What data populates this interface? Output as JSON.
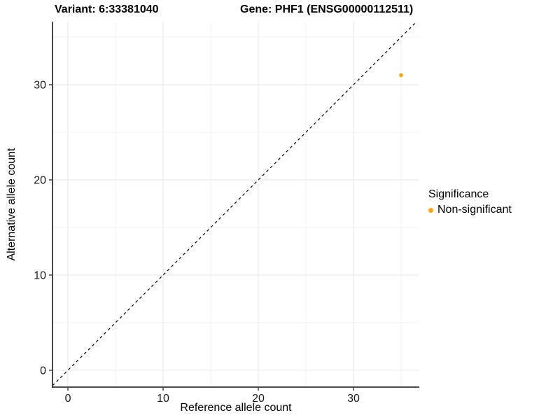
{
  "titles": {
    "variant": "Variant: 6:33381040",
    "gene": "Gene: PHF1 (ENSG00000112511)"
  },
  "chart_data": {
    "type": "scatter",
    "xlabel": "Reference allele count",
    "ylabel": "Alternative allele count",
    "xlim": [
      -1.62,
      36.91
    ],
    "ylim": [
      -1.77,
      36.62
    ],
    "xticks": [
      0,
      10,
      20,
      30
    ],
    "yticks": [
      0,
      10,
      20,
      30
    ],
    "grid_step": 5,
    "grid": true,
    "points": [
      {
        "x": 35,
        "y": 31,
        "label": "Non-significant"
      }
    ],
    "identity_line": {
      "equation": "y = x",
      "style": "dashed",
      "color": "#000000"
    },
    "legend": {
      "title": "Significance",
      "position": "right",
      "items": [
        {
          "label": "Non-significant",
          "color": "#FFA500"
        }
      ]
    },
    "colors": {
      "point": "#FFA500",
      "grid_major": "#E6E6E6",
      "grid_minor": "#F0F0F0",
      "axis": "#333333",
      "tick_text": "#1a1a1a"
    }
  }
}
